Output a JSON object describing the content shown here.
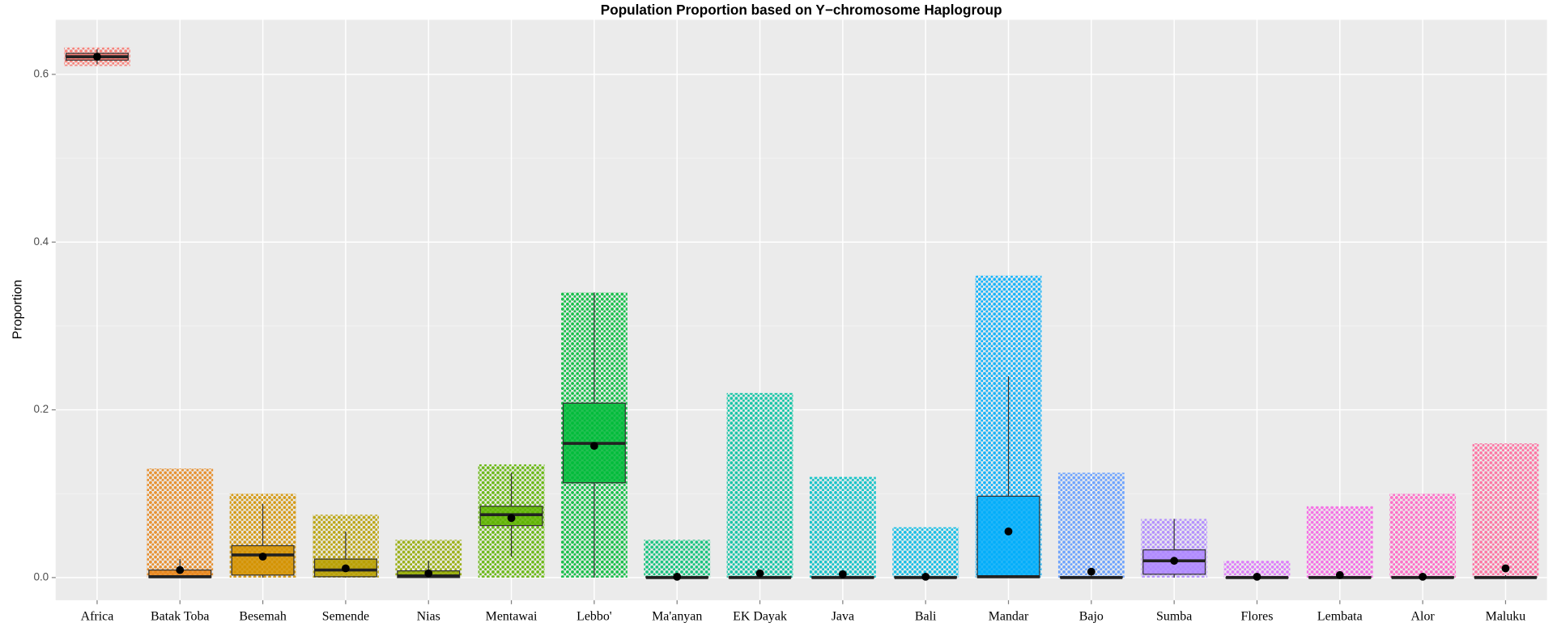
{
  "chart_data": {
    "type": "box",
    "title": "Population Proportion based on Y−chromosome Haplogroup",
    "y_label": "Proportion",
    "categories": [
      "Africa",
      "Batak Toba",
      "Besemah",
      "Semende",
      "Nias",
      "Mentawai",
      "Lebbo'",
      "Ma'anyan",
      "EK Dayak",
      "Java",
      "Bali",
      "Mandar",
      "Bajo",
      "Sumba",
      "Flores",
      "Lembata",
      "Alor",
      "Maluku"
    ],
    "colors": [
      "#f8766d",
      "#e7861b",
      "#d39200",
      "#b79f00",
      "#93aa00",
      "#5eb300",
      "#00ba38",
      "#00bf74",
      "#00c19f",
      "#00bfc4",
      "#00b9e3",
      "#00adfa",
      "#619cff",
      "#ae87ff",
      "#db72fb",
      "#f564e3",
      "#ff61c3",
      "#ff699c"
    ],
    "boxes": [
      {
        "min": 0.612,
        "q1": 0.617,
        "median": 0.621,
        "q3": 0.625,
        "max": 0.63,
        "mean": 0.621,
        "cloud_min": 0.61,
        "cloud_max": 0.632
      },
      {
        "min": 0,
        "q1": 0,
        "median": 0.001,
        "q3": 0.009,
        "max": 0.022,
        "mean": 0.009,
        "cloud_min": 0,
        "cloud_max": 0.13
      },
      {
        "min": 0,
        "q1": 0.003,
        "median": 0.027,
        "q3": 0.038,
        "max": 0.088,
        "mean": 0.025,
        "cloud_min": 0,
        "cloud_max": 0.1
      },
      {
        "min": 0,
        "q1": 0.001,
        "median": 0.009,
        "q3": 0.022,
        "max": 0.055,
        "mean": 0.011,
        "cloud_min": 0,
        "cloud_max": 0.075
      },
      {
        "min": 0,
        "q1": 0,
        "median": 0.002,
        "q3": 0.008,
        "max": 0.02,
        "mean": 0.005,
        "cloud_min": 0,
        "cloud_max": 0.045
      },
      {
        "min": 0.025,
        "q1": 0.062,
        "median": 0.075,
        "q3": 0.085,
        "max": 0.125,
        "mean": 0.071,
        "cloud_min": 0,
        "cloud_max": 0.135
      },
      {
        "min": 0,
        "q1": 0.113,
        "median": 0.16,
        "q3": 0.208,
        "max": 0.34,
        "mean": 0.157,
        "cloud_min": 0,
        "cloud_max": 0.34
      },
      {
        "min": 0,
        "q1": 0,
        "median": 0,
        "q3": 0.001,
        "max": 0.003,
        "mean": 0.001,
        "cloud_min": 0,
        "cloud_max": 0.045
      },
      {
        "min": 0,
        "q1": 0,
        "median": 0,
        "q3": 0.001,
        "max": 0.003,
        "mean": 0.005,
        "cloud_min": 0,
        "cloud_max": 0.22
      },
      {
        "min": 0,
        "q1": 0,
        "median": 0,
        "q3": 0.001,
        "max": 0.003,
        "mean": 0.004,
        "cloud_min": 0,
        "cloud_max": 0.12
      },
      {
        "min": 0,
        "q1": 0,
        "median": 0,
        "q3": 0.001,
        "max": 0.003,
        "mean": 0.001,
        "cloud_min": 0,
        "cloud_max": 0.06
      },
      {
        "min": 0,
        "q1": 0,
        "median": 0.001,
        "q3": 0.097,
        "max": 0.24,
        "mean": 0.055,
        "cloud_min": 0,
        "cloud_max": 0.36
      },
      {
        "min": 0,
        "q1": 0,
        "median": 0,
        "q3": 0.001,
        "max": 0.003,
        "mean": 0.007,
        "cloud_min": 0,
        "cloud_max": 0.125
      },
      {
        "min": 0,
        "q1": 0.004,
        "median": 0.02,
        "q3": 0.033,
        "max": 0.07,
        "mean": 0.02,
        "cloud_min": 0,
        "cloud_max": 0.07
      },
      {
        "min": 0,
        "q1": 0,
        "median": 0,
        "q3": 0,
        "max": 0.001,
        "mean": 0.001,
        "cloud_min": 0,
        "cloud_max": 0.02
      },
      {
        "min": 0,
        "q1": 0,
        "median": 0,
        "q3": 0.001,
        "max": 0.003,
        "mean": 0.003,
        "cloud_min": 0,
        "cloud_max": 0.085
      },
      {
        "min": 0,
        "q1": 0,
        "median": 0,
        "q3": 0.001,
        "max": 0.003,
        "mean": 0.001,
        "cloud_min": 0,
        "cloud_max": 0.1
      },
      {
        "min": 0,
        "q1": 0,
        "median": 0,
        "q3": 0.001,
        "max": 0.003,
        "mean": 0.011,
        "cloud_min": 0,
        "cloud_max": 0.16
      }
    ],
    "ylim": [
      -0.027,
      0.665
    ],
    "yticks": [
      {
        "value": 0,
        "label": "0.0"
      },
      {
        "value": 0.2,
        "label": "0.2"
      },
      {
        "value": 0.4,
        "label": "0.4"
      },
      {
        "value": 0.6,
        "label": "0.6"
      }
    ],
    "minor_yticks": [
      0.1,
      0.3,
      0.5
    ],
    "grid": true
  }
}
